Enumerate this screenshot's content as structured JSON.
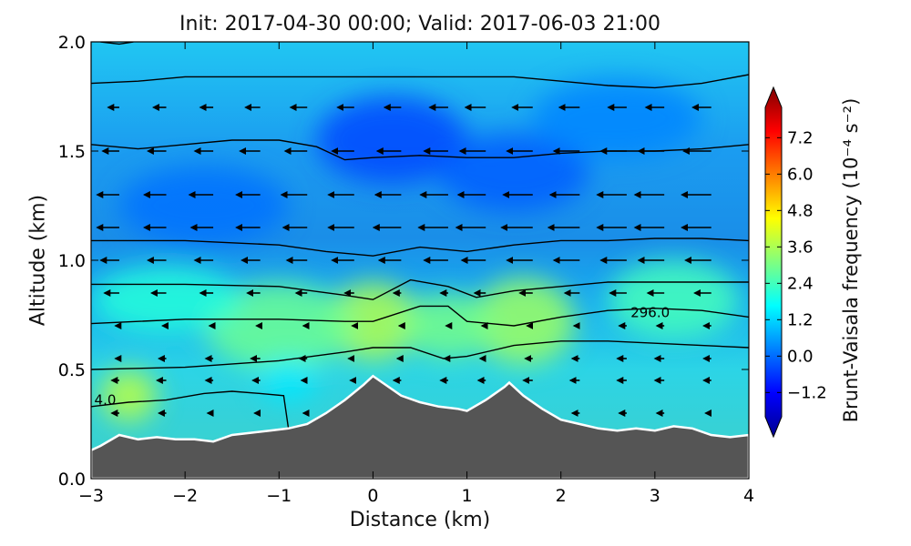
{
  "chart_data": {
    "type": "heatmap",
    "title": "Init: 2017-04-30 00:00; Valid: 2017-06-03 21:00",
    "xlabel": "Distance (km)",
    "ylabel": "Altitude (km)",
    "xlim": [
      -3,
      4
    ],
    "ylim": [
      0,
      2
    ],
    "xticks": [
      -3,
      -2,
      -1,
      0,
      1,
      2,
      3,
      4
    ],
    "xtick_labels": [
      "−3",
      "−2",
      "−1",
      "0",
      "1",
      "2",
      "3",
      "4"
    ],
    "yticks": [
      0.0,
      0.5,
      1.0,
      1.5,
      2.0
    ],
    "ytick_labels": [
      "0.0",
      "0.5",
      "1.0",
      "1.5",
      "2.0"
    ],
    "colorbar": {
      "label": "Brunt-Vaisala frequency (10⁻⁴ s⁻²)",
      "range": [
        -2.0,
        8.2
      ],
      "ticks": [
        -1.2,
        0.0,
        1.2,
        2.4,
        3.6,
        4.8,
        6.0,
        7.2
      ],
      "tick_labels": [
        "−1.2",
        "0.0",
        "1.2",
        "2.4",
        "3.6",
        "4.8",
        "6.0",
        "7.2"
      ],
      "extend": "both",
      "colormap": "jet"
    },
    "terrain": {
      "color": "#555555",
      "x": [
        -3.0,
        -2.9,
        -2.7,
        -2.5,
        -2.3,
        -2.1,
        -1.9,
        -1.7,
        -1.5,
        -1.3,
        -1.1,
        -0.9,
        -0.7,
        -0.5,
        -0.3,
        -0.1,
        0.0,
        0.1,
        0.3,
        0.5,
        0.7,
        0.9,
        1.0,
        1.2,
        1.4,
        1.45,
        1.6,
        1.8,
        2.0,
        2.2,
        2.4,
        2.6,
        2.8,
        3.0,
        3.2,
        3.4,
        3.6,
        3.8,
        4.0
      ],
      "y": [
        0.13,
        0.15,
        0.2,
        0.18,
        0.19,
        0.18,
        0.18,
        0.17,
        0.2,
        0.21,
        0.22,
        0.23,
        0.25,
        0.3,
        0.36,
        0.43,
        0.47,
        0.44,
        0.38,
        0.35,
        0.33,
        0.32,
        0.31,
        0.36,
        0.42,
        0.44,
        0.38,
        0.32,
        0.27,
        0.25,
        0.23,
        0.22,
        0.23,
        0.22,
        0.24,
        0.23,
        0.2,
        0.19,
        0.2
      ]
    },
    "theta_contours": [
      {
        "x": [
          -3.0,
          -2.6,
          -2.2,
          -1.8,
          -1.5,
          -1.2,
          -0.95,
          -0.9
        ],
        "y": [
          0.33,
          0.35,
          0.36,
          0.39,
          0.4,
          0.39,
          0.38,
          0.23
        ]
      },
      {
        "x": [
          -3.0,
          -2.0,
          -1.0,
          -0.3,
          0.0,
          0.4,
          0.75,
          1.0,
          1.5,
          2.0,
          2.5,
          3.0,
          3.5,
          4.0
        ],
        "y": [
          0.5,
          0.51,
          0.54,
          0.58,
          0.6,
          0.6,
          0.55,
          0.56,
          0.61,
          0.63,
          0.63,
          0.62,
          0.61,
          0.6
        ]
      },
      {
        "x": [
          -3.0,
          -2.0,
          -1.0,
          -0.3,
          0.0,
          0.5,
          0.8,
          1.0,
          1.5,
          2.0,
          2.5,
          3.0,
          3.5,
          4.0
        ],
        "y": [
          0.71,
          0.73,
          0.73,
          0.72,
          0.72,
          0.79,
          0.79,
          0.72,
          0.7,
          0.74,
          0.77,
          0.78,
          0.77,
          0.74
        ]
      },
      {
        "x": [
          -3.0,
          -2.0,
          -1.0,
          -0.3,
          0.0,
          0.4,
          0.8,
          1.1,
          1.5,
          2.0,
          2.5,
          3.0,
          3.5,
          4.0
        ],
        "y": [
          0.89,
          0.89,
          0.88,
          0.84,
          0.82,
          0.91,
          0.88,
          0.83,
          0.86,
          0.88,
          0.9,
          0.9,
          0.9,
          0.9
        ]
      },
      {
        "x": [
          -3.0,
          -2.0,
          -1.0,
          -0.5,
          0.0,
          0.5,
          1.0,
          1.5,
          2.0,
          2.5,
          3.0,
          3.5,
          4.0
        ],
        "y": [
          1.09,
          1.09,
          1.07,
          1.04,
          1.02,
          1.06,
          1.04,
          1.07,
          1.09,
          1.09,
          1.1,
          1.1,
          1.09
        ]
      },
      {
        "x": [
          -3.0,
          -2.5,
          -2.0,
          -1.5,
          -1.0,
          -0.6,
          -0.3,
          0.0,
          0.5,
          1.0,
          1.5,
          2.0,
          2.5,
          3.0,
          3.5,
          4.0
        ],
        "y": [
          1.53,
          1.51,
          1.53,
          1.55,
          1.55,
          1.52,
          1.46,
          1.47,
          1.48,
          1.47,
          1.47,
          1.49,
          1.5,
          1.5,
          1.51,
          1.53
        ]
      },
      {
        "x": [
          -3.0,
          -2.5,
          -2.0,
          -1.5,
          -1.0,
          -0.5,
          0.0,
          0.5,
          1.0,
          1.5,
          2.0,
          2.5,
          3.0,
          3.5,
          4.0
        ],
        "y": [
          1.81,
          1.82,
          1.84,
          1.84,
          1.84,
          1.84,
          1.84,
          1.84,
          1.84,
          1.84,
          1.82,
          1.8,
          1.79,
          1.81,
          1.85
        ]
      },
      {
        "x": [
          -2.9,
          -2.7,
          -2.55
        ],
        "y": [
          2.0,
          1.99,
          2.0
        ]
      }
    ],
    "contour_labels": [
      {
        "text": "4.0",
        "x": -2.85,
        "y": 0.36
      },
      {
        "text": "296.0",
        "x": 2.95,
        "y": 0.76
      }
    ],
    "wind_vectors": {
      "x": [
        -2.7,
        -2.2,
        -1.7,
        -1.2,
        -0.7,
        -0.2,
        0.3,
        0.8,
        1.2,
        1.7,
        2.2,
        2.7,
        3.1,
        3.6
      ],
      "rows": [
        {
          "z": 1.7,
          "u": [
            -0.3,
            -0.35,
            -0.35,
            -0.4,
            -0.45,
            -0.45,
            -0.45,
            -0.5,
            -0.55,
            -0.55,
            -0.55,
            -0.5,
            -0.5,
            -0.5
          ]
        },
        {
          "z": 1.5,
          "u": [
            -0.45,
            -0.5,
            -0.5,
            -0.55,
            -0.6,
            -0.6,
            -0.65,
            -0.65,
            -0.7,
            -0.7,
            -0.7,
            -0.7,
            -0.7,
            -0.75
          ]
        },
        {
          "z": 1.3,
          "u": [
            -0.6,
            -0.6,
            -0.65,
            -0.65,
            -0.7,
            -0.7,
            -0.7,
            -0.75,
            -0.75,
            -0.8,
            -0.8,
            -0.8,
            -0.8,
            -0.8
          ]
        },
        {
          "z": 1.15,
          "u": [
            -0.6,
            -0.6,
            -0.6,
            -0.65,
            -0.65,
            -0.7,
            -0.75,
            -0.8,
            -0.8,
            -0.85,
            -0.85,
            -0.8,
            -0.8,
            -0.8
          ]
        },
        {
          "z": 1.0,
          "u": [
            -0.5,
            -0.5,
            -0.5,
            -0.5,
            -0.55,
            -0.6,
            -0.6,
            -0.65,
            -0.65,
            -0.7,
            -0.7,
            -0.7,
            -0.7,
            -0.7
          ]
        },
        {
          "z": 0.85,
          "u": [
            -0.4,
            -0.4,
            -0.35,
            -0.35,
            -0.3,
            -0.25,
            -0.2,
            -0.2,
            -0.3,
            -0.35,
            -0.4,
            -0.45,
            -0.45,
            -0.45
          ]
        },
        {
          "z": 0.7,
          "u": [
            -0.1,
            -0.1,
            -0.1,
            -0.1,
            -0.1,
            -0.05,
            -0.05,
            -0.05,
            -0.1,
            -0.15,
            -0.15,
            -0.2,
            -0.2,
            -0.2
          ]
        },
        {
          "z": 0.55,
          "u": [
            -0.1,
            -0.2,
            -0.2,
            -0.25,
            -0.2,
            -0.15,
            -0.1,
            -0.1,
            -0.15,
            -0.2,
            -0.2,
            -0.25,
            -0.25,
            -0.2
          ]
        },
        {
          "z": 0.45,
          "u": [
            -0.2,
            -0.25,
            -0.2,
            -0.2,
            -0.15,
            -0.1,
            -0.2,
            -0.2,
            -0.2,
            -0.25,
            -0.25,
            -0.25,
            -0.25,
            -0.2
          ]
        },
        {
          "z": 0.3,
          "u": [
            -0.2,
            -0.2,
            -0.15,
            -0.15,
            -0.1,
            -0.1,
            -0.1,
            -0.2,
            -0.2,
            -0.2,
            -0.2,
            -0.2,
            -0.2,
            -0.15
          ]
        }
      ]
    },
    "field_blobs": [
      {
        "x": 0.0,
        "y": 0.72,
        "rx": 0.5,
        "ry": 0.18,
        "v": 3.6
      },
      {
        "x": 1.6,
        "y": 0.72,
        "rx": 0.55,
        "ry": 0.2,
        "v": 3.4
      },
      {
        "x": 0.8,
        "y": 0.7,
        "rx": 0.5,
        "ry": 0.15,
        "v": 3.0
      },
      {
        "x": -1.0,
        "y": 0.7,
        "rx": 0.8,
        "ry": 0.2,
        "v": 2.9
      },
      {
        "x": -2.6,
        "y": 0.38,
        "rx": 0.3,
        "ry": 0.12,
        "v": 3.7
      },
      {
        "x": 3.2,
        "y": 0.82,
        "rx": 0.7,
        "ry": 0.18,
        "v": 2.5
      },
      {
        "x": -2.2,
        "y": 0.82,
        "rx": 0.8,
        "ry": 0.15,
        "v": 2.2
      },
      {
        "x": 0.2,
        "y": 1.55,
        "rx": 0.8,
        "ry": 0.2,
        "v": 0.0
      },
      {
        "x": 1.5,
        "y": 1.4,
        "rx": 0.8,
        "ry": 0.18,
        "v": 0.2
      },
      {
        "x": -1.8,
        "y": 1.25,
        "rx": 0.9,
        "ry": 0.18,
        "v": 0.4
      },
      {
        "x": 2.6,
        "y": 1.65,
        "rx": 0.9,
        "ry": 0.18,
        "v": 0.6
      },
      {
        "x": -0.9,
        "y": 0.45,
        "rx": 0.3,
        "ry": 0.1,
        "v": 1.6
      }
    ]
  }
}
